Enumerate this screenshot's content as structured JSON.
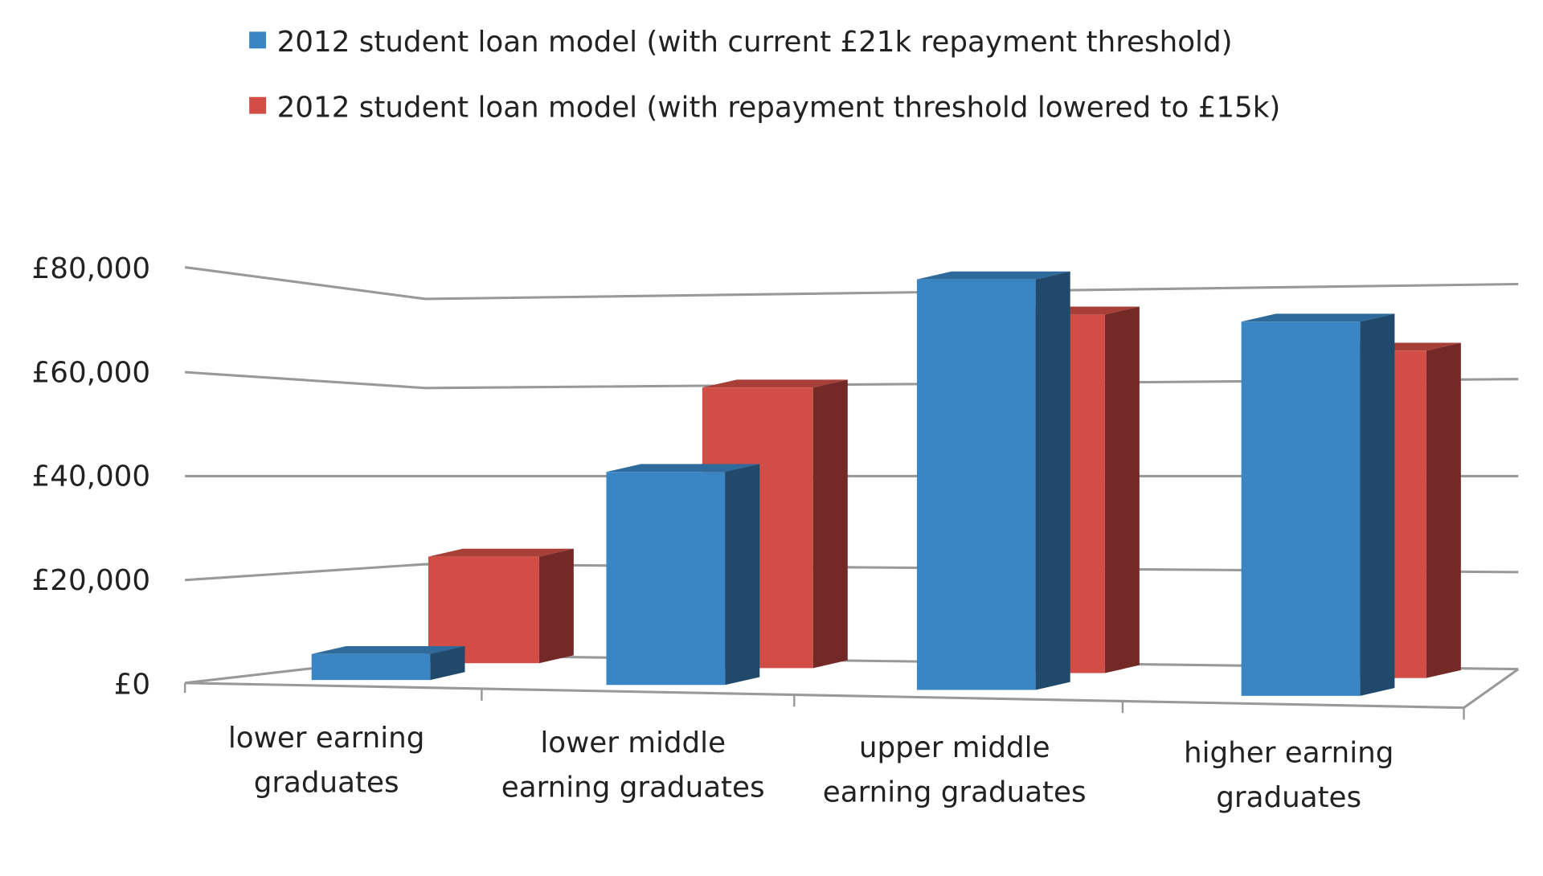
{
  "chart_data": {
    "type": "bar",
    "style": "3d-clustered-column",
    "categories": [
      [
        "lower earning",
        "graduates"
      ],
      [
        "lower middle",
        "earning graduates"
      ],
      [
        "upper middle",
        "earning graduates"
      ],
      [
        "higher earning",
        "graduates"
      ]
    ],
    "series": [
      {
        "name": "2012 student loan model (with current £21k repayment threshold)",
        "color": "#3a85c3",
        "values": [
          5000,
          41000,
          79000,
          72000
        ]
      },
      {
        "name": "2012 student loan model (with repayment threshold lowered to £15k)",
        "color": "#d14d46",
        "values": [
          20500,
          54000,
          69000,
          63000
        ]
      }
    ],
    "yticks": [
      "£0",
      "£20,000",
      "£40,000",
      "£60,000",
      "£80,000"
    ],
    "ytick_values": [
      0,
      20000,
      40000,
      60000,
      80000
    ],
    "ylim": [
      0,
      80000
    ],
    "grid": true,
    "legend_position": "top"
  }
}
